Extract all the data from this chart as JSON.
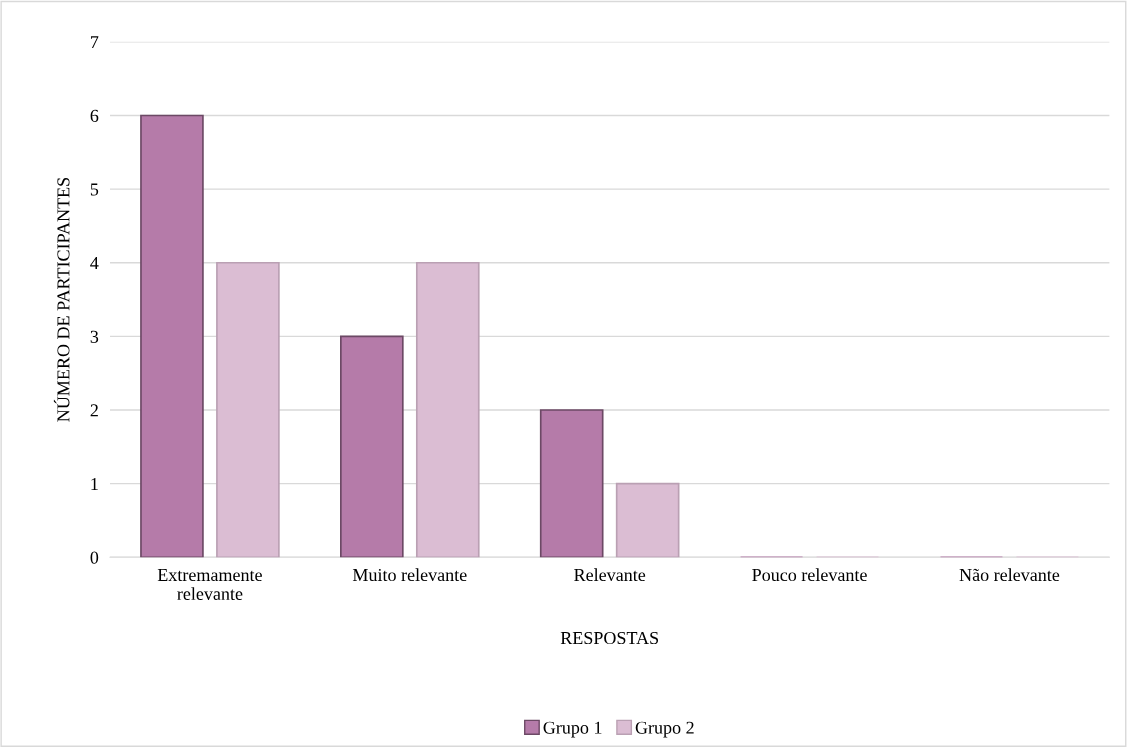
{
  "chart_data": {
    "type": "bar",
    "xlabel": "RESPOSTAS",
    "ylabel": "NÚMERO DE PARTICIPANTES",
    "categories": [
      "Extremamente relevante",
      "Muito relevante",
      "Relevante",
      "Pouco relevante",
      "Não relevante"
    ],
    "series": [
      {
        "name": "Grupo 1",
        "color": "#b57ba9",
        "values": [
          6,
          3,
          2,
          0,
          0
        ]
      },
      {
        "name": "Grupo 2",
        "color": "#dbbdd3",
        "values": [
          4,
          4,
          1,
          0,
          0
        ]
      }
    ],
    "ylim": [
      0,
      7
    ],
    "yticks": [
      0,
      1,
      2,
      3,
      4,
      5,
      6,
      7
    ],
    "grid": "y",
    "legend": "bottom"
  }
}
